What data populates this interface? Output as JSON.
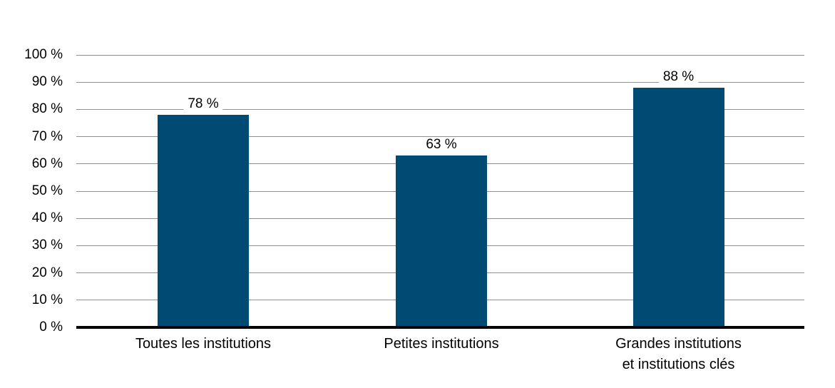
{
  "chart_data": {
    "type": "bar",
    "title": "",
    "xlabel": "",
    "ylabel": "",
    "categories": [
      "Toutes les institutions",
      "Petites institutions",
      "Grandes institutions\net institutions clés"
    ],
    "values": [
      78,
      63,
      88
    ],
    "value_labels": [
      "78 %",
      "63 %",
      "88 %"
    ],
    "ylim": [
      0,
      100
    ],
    "y_tick_step": 10,
    "y_tick_labels": [
      "0 %",
      "10 %",
      "20 %",
      "30 %",
      "40 %",
      "50 %",
      "60 %",
      "70 %",
      "80 %",
      "90 %",
      "100 %"
    ],
    "grid": "horizontal",
    "legend_position": "none",
    "colors": {
      "bar": "#004b73",
      "gridline": "#8f8f8f",
      "axis": "#000000",
      "text": "#000000",
      "background": "#ffffff"
    }
  }
}
